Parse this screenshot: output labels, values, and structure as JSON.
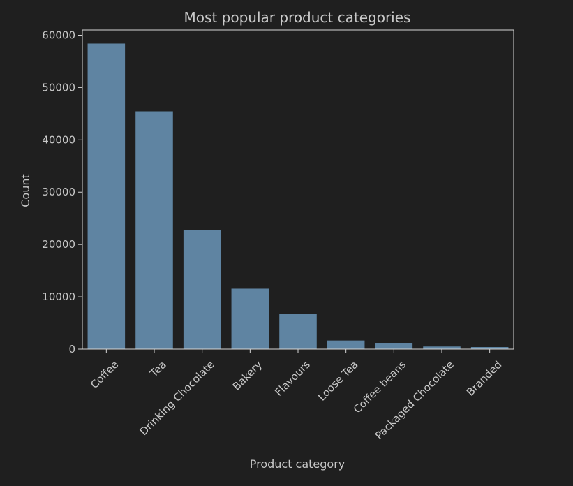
{
  "colors": {
    "background": "#1f1f1f",
    "bar": "#5f84a2",
    "axis": "#d6d6d6",
    "text": "#c9c9c9"
  },
  "chart_data": {
    "type": "bar",
    "title": "Most popular product categories",
    "xlabel": "Product category",
    "ylabel": "Count",
    "categories": [
      "Coffee",
      "Tea",
      "Drinking Chocolate",
      "Bakery",
      "Flavours",
      "Loose Tea",
      "Coffee beans",
      "Packaged Chocolate",
      "Branded"
    ],
    "values": [
      58400,
      45450,
      22800,
      11550,
      6800,
      1650,
      1200,
      500,
      400
    ],
    "ylim": [
      0,
      61000
    ],
    "yticks": [
      0,
      10000,
      20000,
      30000,
      40000,
      50000,
      60000
    ],
    "grid": false,
    "legend": "none"
  }
}
